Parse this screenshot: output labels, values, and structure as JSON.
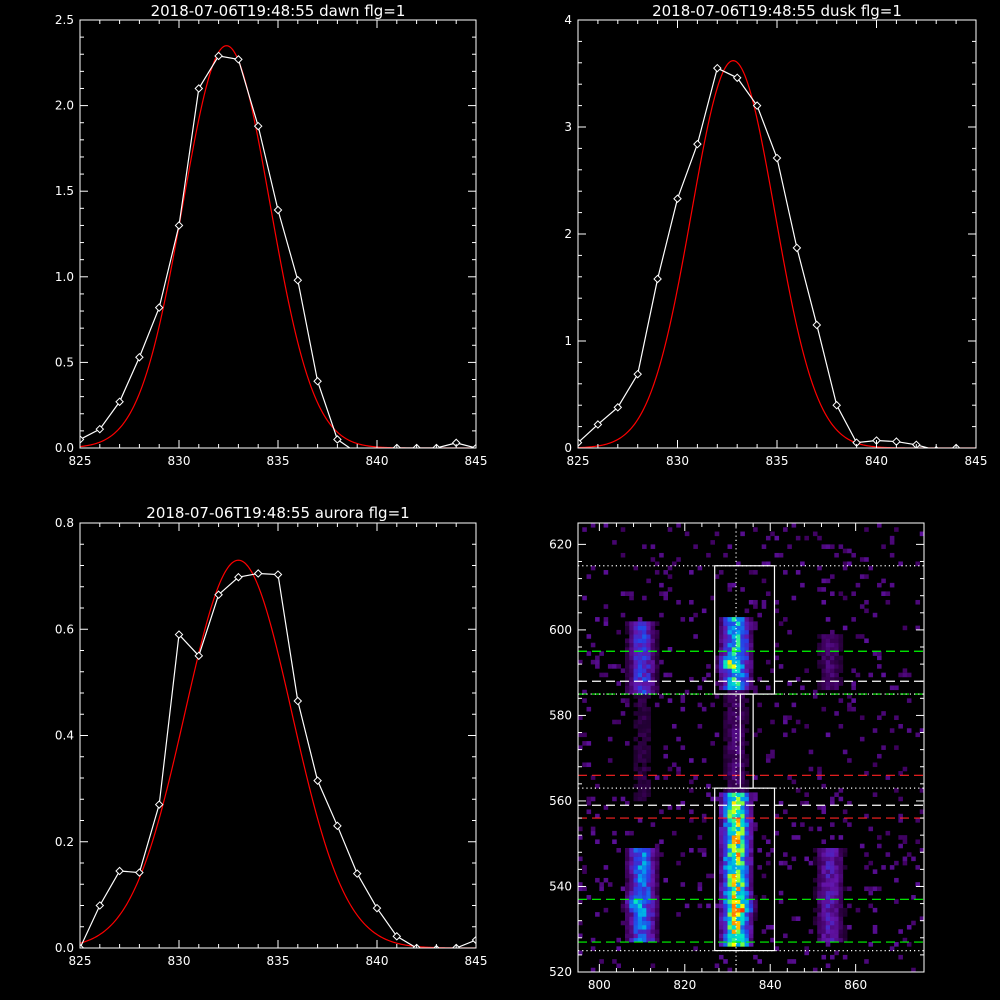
{
  "chart_data": [
    {
      "type": "line",
      "title": "2018-07-06T19:48:55 dawn flg=1",
      "xlim": [
        825,
        845
      ],
      "ylim": [
        0,
        2.5
      ],
      "xticks": [
        "825",
        "830",
        "835",
        "840",
        "845"
      ],
      "yticks": [
        "0.0",
        "0.5",
        "1.0",
        "1.5",
        "2.0",
        "2.5"
      ],
      "series": [
        {
          "role": "data",
          "color": "#ffffff",
          "marker": "diamond",
          "x": [
            825,
            826,
            827,
            828,
            829,
            830,
            831,
            832,
            833,
            834,
            835,
            836,
            837,
            838,
            839,
            840,
            841,
            842,
            843,
            844,
            845
          ],
          "y": [
            0.05,
            0.11,
            0.27,
            0.53,
            0.82,
            1.3,
            2.1,
            2.29,
            2.27,
            1.88,
            1.39,
            0.98,
            0.39,
            0.05,
            -0.03,
            -0.05,
            0.0,
            0.0,
            0.0,
            0.03,
            0.0
          ]
        },
        {
          "role": "fit",
          "color": "#ff0000",
          "gaussian": {
            "amplitude": 2.35,
            "center": 832.4,
            "sigma": 2.2,
            "offset": 0.0
          }
        }
      ]
    },
    {
      "type": "line",
      "title": "2018-07-06T19:48:55 dusk flg=1",
      "xlim": [
        825,
        845
      ],
      "ylim": [
        0,
        4
      ],
      "xticks": [
        "825",
        "830",
        "835",
        "840",
        "845"
      ],
      "yticks": [
        "0",
        "1",
        "2",
        "3",
        "4"
      ],
      "series": [
        {
          "role": "data",
          "color": "#ffffff",
          "marker": "diamond",
          "x": [
            825,
            826,
            827,
            828,
            829,
            830,
            831,
            832,
            833,
            834,
            835,
            836,
            837,
            838,
            839,
            840,
            841,
            842,
            843,
            844
          ],
          "y": [
            0.05,
            0.22,
            0.38,
            0.69,
            1.58,
            2.33,
            2.84,
            3.55,
            3.46,
            3.2,
            2.71,
            1.87,
            1.15,
            0.4,
            0.05,
            0.07,
            0.06,
            0.03,
            -0.02,
            0.0
          ]
        },
        {
          "role": "fit",
          "color": "#ff0000",
          "gaussian": {
            "amplitude": 3.62,
            "center": 832.8,
            "sigma": 2.1,
            "offset": 0.0
          }
        }
      ]
    },
    {
      "type": "line",
      "title": "2018-07-06T19:48:55 aurora flg=1",
      "xlim": [
        825,
        845
      ],
      "ylim": [
        0,
        0.8
      ],
      "xticks": [
        "825",
        "830",
        "835",
        "840",
        "845"
      ],
      "yticks": [
        "0.0",
        "0.2",
        "0.4",
        "0.6",
        "0.8"
      ],
      "series": [
        {
          "role": "data",
          "color": "#ffffff",
          "marker": "diamond",
          "x": [
            825,
            826,
            827,
            828,
            829,
            830,
            831,
            832,
            833,
            834,
            835,
            836,
            837,
            838,
            839,
            840,
            841,
            842,
            843,
            844,
            845
          ],
          "y": [
            0.0,
            0.08,
            0.145,
            0.142,
            0.27,
            0.59,
            0.55,
            0.665,
            0.698,
            0.705,
            0.703,
            0.465,
            0.315,
            0.23,
            0.14,
            0.075,
            0.022,
            0.0,
            -0.002,
            0.0,
            0.015
          ]
        },
        {
          "role": "fit",
          "color": "#ff0000",
          "gaussian": {
            "amplitude": 0.73,
            "center": 833.0,
            "sigma": 2.7,
            "offset": 0.0
          }
        }
      ]
    },
    {
      "type": "heatmap",
      "title": "",
      "xlim": [
        795,
        876
      ],
      "ylim": [
        520,
        625
      ],
      "xticks": [
        "800",
        "820",
        "840",
        "860"
      ],
      "yticks": [
        "520",
        "540",
        "560",
        "580",
        "600",
        "620"
      ],
      "columns": [
        {
          "x": 810,
          "halfwidth": 4,
          "spans": [
            [
              527,
              548,
              0.45
            ],
            [
              585,
              601,
              0.32
            ],
            [
              560,
              584,
              0.07
            ]
          ]
        },
        {
          "x": 832,
          "halfwidth": 4,
          "spans": [
            [
              526,
              561,
              0.85
            ],
            [
              586,
              602,
              0.6
            ],
            [
              562,
              585,
              0.12
            ]
          ]
        },
        {
          "x": 854,
          "halfwidth": 4,
          "spans": [
            [
              527,
              548,
              0.22
            ],
            [
              586,
              598,
              0.12
            ]
          ]
        }
      ],
      "hotspots": [
        {
          "x": 833,
          "y": 535,
          "value": 1.0
        },
        {
          "x": 831,
          "y": 592,
          "value": 0.8
        },
        {
          "x": 809,
          "y": 536,
          "value": 0.6
        }
      ],
      "hlines": [
        {
          "y": 615,
          "color": "#ffffff",
          "style": "dotted"
        },
        {
          "y": 595,
          "color": "#00ff00",
          "style": "dashed"
        },
        {
          "y": 588,
          "color": "#ffffff",
          "style": "dashed"
        },
        {
          "y": 585,
          "color": "#00ff00",
          "style": "dashed"
        },
        {
          "y": 585,
          "color": "#ffffff",
          "style": "dotted"
        },
        {
          "y": 566,
          "color": "#ff2222",
          "style": "dashed"
        },
        {
          "y": 563,
          "color": "#ffffff",
          "style": "dotted"
        },
        {
          "y": 559,
          "color": "#ffffff",
          "style": "dashed"
        },
        {
          "y": 556,
          "color": "#ff2222",
          "style": "dashed"
        },
        {
          "y": 537,
          "color": "#00ff00",
          "style": "dashed"
        },
        {
          "y": 527,
          "color": "#00ff00",
          "style": "dashed"
        },
        {
          "y": 525,
          "color": "#ffffff",
          "style": "dotted"
        }
      ],
      "vlines": [
        {
          "x": 832,
          "color": "#ffffff",
          "style": "dotted"
        }
      ],
      "boxes": [
        {
          "x0": 827,
          "x1": 841,
          "y0": 585,
          "y1": 615
        },
        {
          "x0": 827,
          "x1": 841,
          "y0": 525,
          "y1": 563
        },
        {
          "x0": 833,
          "x1": 836,
          "y0": 563,
          "y1": 585
        }
      ]
    }
  ]
}
